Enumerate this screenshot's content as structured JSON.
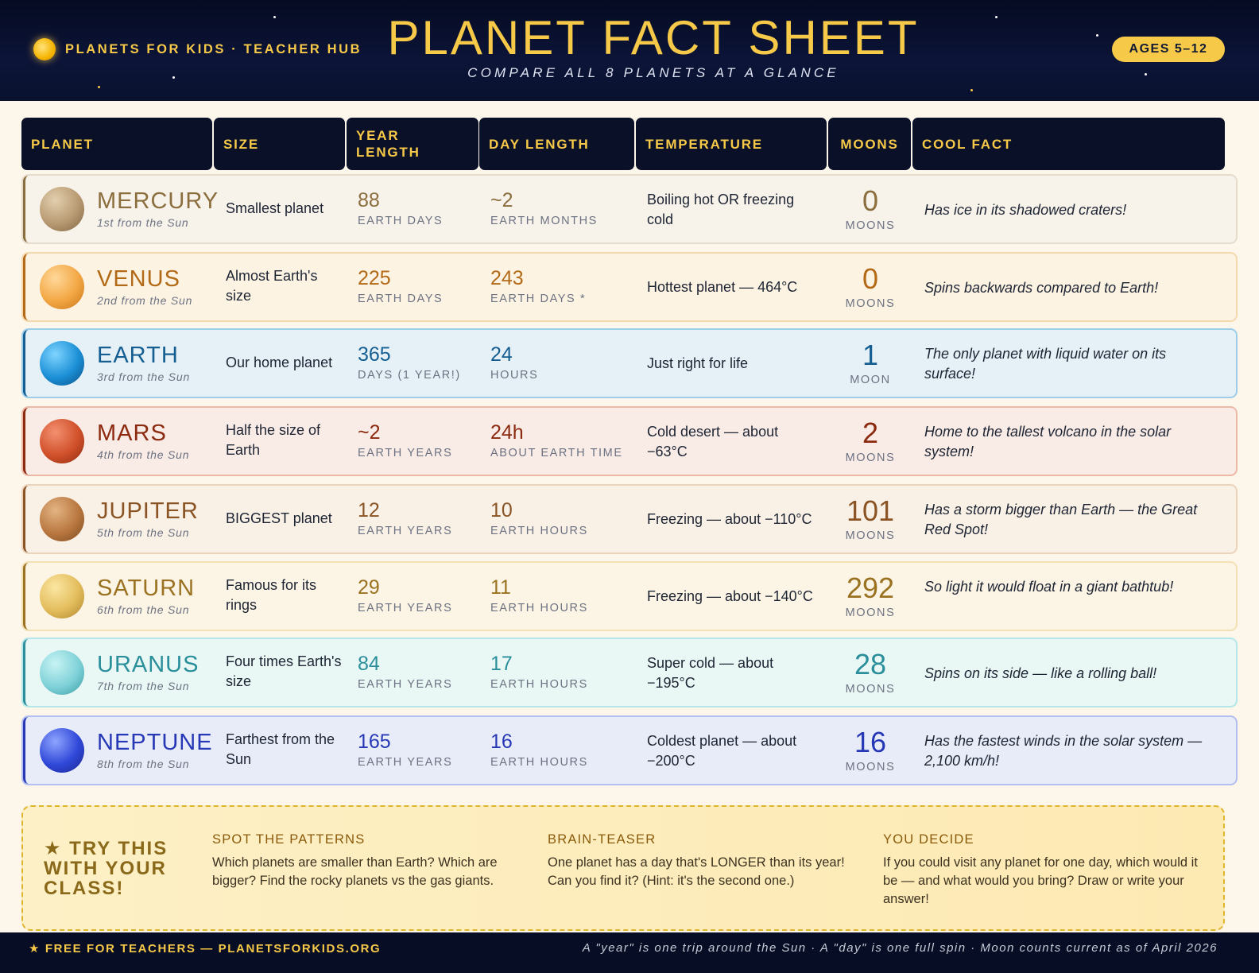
{
  "brand": "PLANETS FOR KIDS · TEACHER HUB",
  "title": "PLANET FACT SHEET",
  "subtitle": "COMPARE ALL 8 PLANETS AT A GLANCE",
  "ages_badge": "AGES 5–12",
  "columns": [
    "PLANET",
    "SIZE",
    "YEAR LENGTH",
    "DAY LENGTH",
    "TEMPERATURE",
    "MOONS",
    "COOL FACT"
  ],
  "planets": [
    {
      "name": "MERCURY",
      "order": "1st from the Sun",
      "size": "Smallest planet",
      "year_value": "88",
      "year_unit": "EARTH DAYS",
      "day_value": "~2",
      "day_unit": "EARTH MONTHS",
      "temperature": "Boiling hot OR freezing cold",
      "moons": "0",
      "moons_unit": "MOONS",
      "fact": "Has ice in its shadowed craters!",
      "accent": "#8b6e3e",
      "bg": "#f7f2ea",
      "border": "#e5dccd"
    },
    {
      "name": "VENUS",
      "order": "2nd from the Sun",
      "size": "Almost Earth's size",
      "year_value": "225",
      "year_unit": "EARTH DAYS",
      "day_value": "243",
      "day_unit": "EARTH DAYS *",
      "temperature": "Hottest planet — 464°C",
      "moons": "0",
      "moons_unit": "MOONS",
      "fact": "Spins backwards compared to Earth!",
      "accent": "#b36a17",
      "bg": "#fdf3e3",
      "border": "#f5d9ae"
    },
    {
      "name": "EARTH",
      "order": "3rd from the Sun",
      "size": "Our home planet",
      "year_value": "365",
      "year_unit": "DAYS (1 YEAR!)",
      "day_value": "24",
      "day_unit": "HOURS",
      "temperature": "Just right for life",
      "moons": "1",
      "moons_unit": "MOON",
      "fact": "The only planet with liquid water on its surface!",
      "accent": "#145e92",
      "bg": "#e6f1f7",
      "border": "#9dcde8"
    },
    {
      "name": "MARS",
      "order": "4th from the Sun",
      "size": "Half the size of Earth",
      "year_value": "~2",
      "year_unit": "EARTH YEARS",
      "day_value": "24h",
      "day_unit": "ABOUT EARTH TIME",
      "temperature": "Cold desert — about −63°C",
      "moons": "2",
      "moons_unit": "MOONS",
      "fact": "Home to the tallest volcano in the solar system!",
      "accent": "#8c2a10",
      "bg": "#f9ebe5",
      "border": "#ebb9a6"
    },
    {
      "name": "JUPITER",
      "order": "5th from the Sun",
      "size": "BIGGEST planet",
      "year_value": "12",
      "year_unit": "EARTH YEARS",
      "day_value": "10",
      "day_unit": "EARTH HOURS",
      "temperature": "Freezing — about −110°C",
      "moons": "101",
      "moons_unit": "MOONS",
      "fact": "Has a storm bigger than Earth — the Great Red Spot!",
      "accent": "#8a5424",
      "bg": "#f9f0e6",
      "border": "#ecd4bb"
    },
    {
      "name": "SATURN",
      "order": "6th from the Sun",
      "size": "Famous for its rings",
      "year_value": "29",
      "year_unit": "EARTH YEARS",
      "day_value": "11",
      "day_unit": "EARTH HOURS",
      "temperature": "Freezing — about −140°C",
      "moons": "292",
      "moons_unit": "MOONS",
      "fact": "So light it would float in a giant bathtub!",
      "accent": "#9a7222",
      "bg": "#fcf4e4",
      "border": "#f3e0b4"
    },
    {
      "name": "URANUS",
      "order": "7th from the Sun",
      "size": "Four times Earth's size",
      "year_value": "84",
      "year_unit": "EARTH YEARS",
      "day_value": "17",
      "day_unit": "EARTH HOURS",
      "temperature": "Super cold — about −195°C",
      "moons": "28",
      "moons_unit": "MOONS",
      "fact": "Spins on its side — like a rolling ball!",
      "accent": "#2a8f9b",
      "bg": "#e9f7f5",
      "border": "#b5e6ea"
    },
    {
      "name": "NEPTUNE",
      "order": "8th from the Sun",
      "size": "Farthest from the Sun",
      "year_value": "165",
      "year_unit": "EARTH YEARS",
      "day_value": "16",
      "day_unit": "EARTH HOURS",
      "temperature": "Coldest planet — about −200°C",
      "moons": "16",
      "moons_unit": "MOONS",
      "fact": "Has the fastest winds in the solar system — 2,100 km/h!",
      "accent": "#2638b5",
      "bg": "#e8ecf8",
      "border": "#b3bff0"
    }
  ],
  "activity": {
    "heading": "★ TRY THIS WITH YOUR CLASS!",
    "items": [
      {
        "title": "SPOT THE PATTERNS",
        "body": "Which planets are smaller than Earth? Which are bigger? Find the rocky planets vs the gas giants."
      },
      {
        "title": "BRAIN-TEASER",
        "body": "One planet has a day that's LONGER than its year! Can you find it? (Hint: it's the second one.)"
      },
      {
        "title": "YOU DECIDE",
        "body": "If you could visit any planet for one day, which would it be — and what would you bring? Draw or write your answer!"
      }
    ]
  },
  "footer": {
    "left": "★ FREE FOR TEACHERS — PLANETSFORKIDS.ORG",
    "right": "A \"year\" is one trip around the Sun · A \"day\" is one full spin · Moon counts current as of April 2026"
  },
  "colors": {
    "accent": "#f7c948",
    "navy": "#0a1028"
  }
}
